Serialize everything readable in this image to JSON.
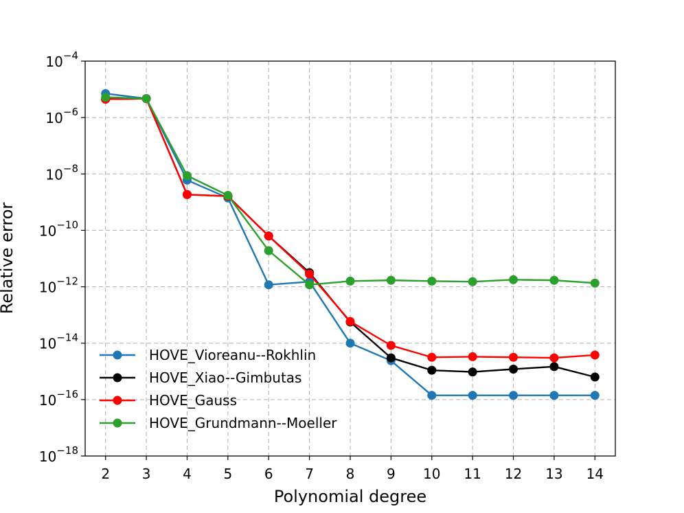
{
  "chart_data": {
    "type": "line",
    "title": "",
    "xlabel": "Polynomial degree",
    "ylabel": "Relative error",
    "yscale": "log",
    "grid": true,
    "legend_position": "lower-left",
    "x": [
      2,
      3,
      4,
      5,
      6,
      7,
      8,
      9,
      10,
      11,
      12,
      13,
      14
    ],
    "xticks": [
      "2",
      "3",
      "4",
      "5",
      "6",
      "7",
      "8",
      "9",
      "10",
      "11",
      "12",
      "13",
      "14"
    ],
    "ylim": [
      -18,
      -4
    ],
    "yticks": [
      {
        "base": "10",
        "exp": "−4",
        "value": -4
      },
      {
        "base": "10",
        "exp": "−6",
        "value": -6
      },
      {
        "base": "10",
        "exp": "−8",
        "value": -8
      },
      {
        "base": "10",
        "exp": "−10",
        "value": -10
      },
      {
        "base": "10",
        "exp": "−12",
        "value": -12
      },
      {
        "base": "10",
        "exp": "−14",
        "value": -14
      },
      {
        "base": "10",
        "exp": "−16",
        "value": -16
      },
      {
        "base": "10",
        "exp": "−18",
        "value": -18
      }
    ],
    "series": [
      {
        "name": "HOVE_Vioreanu--Rokhlin",
        "color": "#1f77b4",
        "log10_values": [
          -5.15,
          -5.33,
          -8.22,
          -8.85,
          -11.93,
          -11.82,
          -14.0,
          -14.62,
          -15.85,
          -15.85,
          -15.85,
          -15.85,
          -15.85
        ]
      },
      {
        "name": "HOVE_Xiao--Gimbutas",
        "color": "#000000",
        "log10_values": [
          -5.35,
          -5.33,
          -8.73,
          -8.79,
          -10.2,
          -11.5,
          -13.25,
          -14.52,
          -14.96,
          -15.02,
          -14.92,
          -14.83,
          -15.2
        ]
      },
      {
        "name": "HOVE_Gauss",
        "color": "#ff0000",
        "log10_values": [
          -5.35,
          -5.33,
          -8.73,
          -8.79,
          -10.2,
          -11.55,
          -13.23,
          -14.08,
          -14.5,
          -14.48,
          -14.5,
          -14.52,
          -14.42
        ]
      },
      {
        "name": "HOVE_Grundmann--Moeller",
        "color": "#2ca02c",
        "log10_values": [
          -5.28,
          -5.33,
          -8.06,
          -8.76,
          -10.72,
          -11.93,
          -11.8,
          -11.77,
          -11.8,
          -11.82,
          -11.75,
          -11.77,
          -11.87
        ]
      }
    ]
  }
}
